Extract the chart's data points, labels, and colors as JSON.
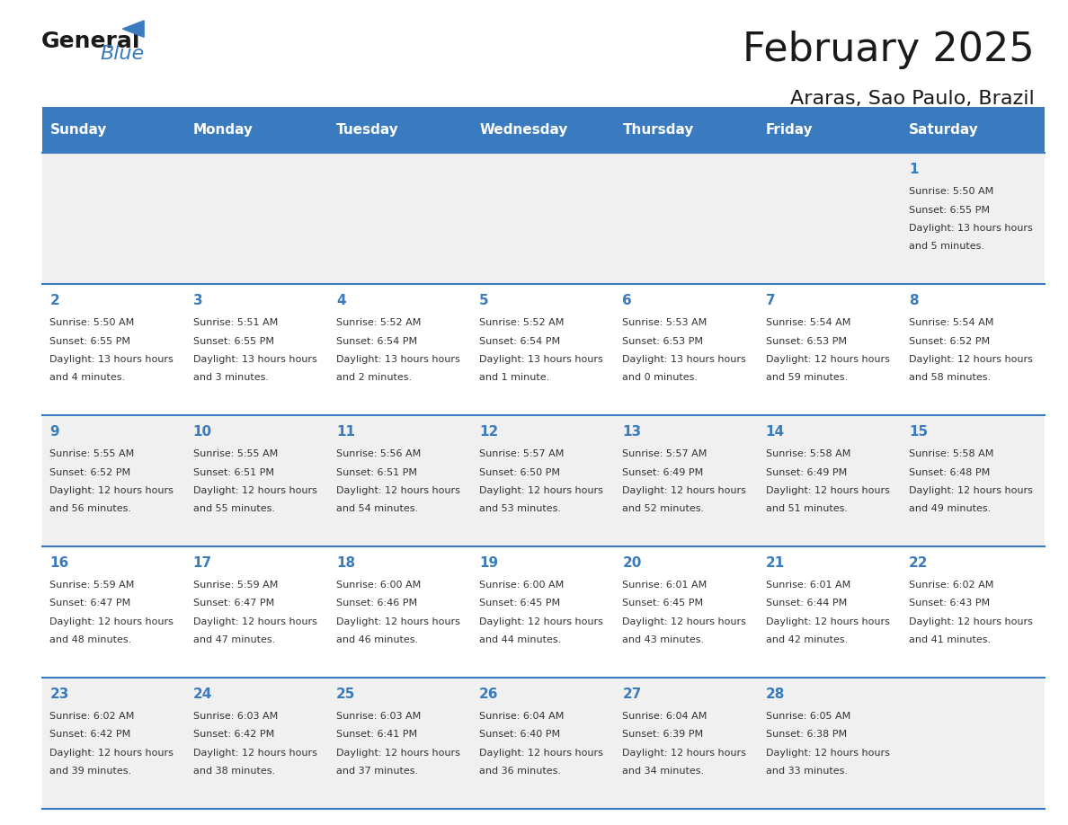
{
  "title": "February 2025",
  "subtitle": "Araras, Sao Paulo, Brazil",
  "header_color": "#3a7bbf",
  "header_text_color": "#ffffff",
  "cell_bg_odd": "#f0f0f0",
  "cell_bg_even": "#ffffff",
  "day_number_color": "#3a7bbf",
  "text_color": "#333333",
  "border_color": "#3a7bbf",
  "days_of_week": [
    "Sunday",
    "Monday",
    "Tuesday",
    "Wednesday",
    "Thursday",
    "Friday",
    "Saturday"
  ],
  "weeks": [
    [
      {
        "day": null,
        "sunrise": null,
        "sunset": null,
        "daylight": null
      },
      {
        "day": null,
        "sunrise": null,
        "sunset": null,
        "daylight": null
      },
      {
        "day": null,
        "sunrise": null,
        "sunset": null,
        "daylight": null
      },
      {
        "day": null,
        "sunrise": null,
        "sunset": null,
        "daylight": null
      },
      {
        "day": null,
        "sunrise": null,
        "sunset": null,
        "daylight": null
      },
      {
        "day": null,
        "sunrise": null,
        "sunset": null,
        "daylight": null
      },
      {
        "day": 1,
        "sunrise": "5:50 AM",
        "sunset": "6:55 PM",
        "daylight": "13 hours and 5 minutes."
      }
    ],
    [
      {
        "day": 2,
        "sunrise": "5:50 AM",
        "sunset": "6:55 PM",
        "daylight": "13 hours and 4 minutes."
      },
      {
        "day": 3,
        "sunrise": "5:51 AM",
        "sunset": "6:55 PM",
        "daylight": "13 hours and 3 minutes."
      },
      {
        "day": 4,
        "sunrise": "5:52 AM",
        "sunset": "6:54 PM",
        "daylight": "13 hours and 2 minutes."
      },
      {
        "day": 5,
        "sunrise": "5:52 AM",
        "sunset": "6:54 PM",
        "daylight": "13 hours and 1 minute."
      },
      {
        "day": 6,
        "sunrise": "5:53 AM",
        "sunset": "6:53 PM",
        "daylight": "13 hours and 0 minutes."
      },
      {
        "day": 7,
        "sunrise": "5:54 AM",
        "sunset": "6:53 PM",
        "daylight": "12 hours and 59 minutes."
      },
      {
        "day": 8,
        "sunrise": "5:54 AM",
        "sunset": "6:52 PM",
        "daylight": "12 hours and 58 minutes."
      }
    ],
    [
      {
        "day": 9,
        "sunrise": "5:55 AM",
        "sunset": "6:52 PM",
        "daylight": "12 hours and 56 minutes."
      },
      {
        "day": 10,
        "sunrise": "5:55 AM",
        "sunset": "6:51 PM",
        "daylight": "12 hours and 55 minutes."
      },
      {
        "day": 11,
        "sunrise": "5:56 AM",
        "sunset": "6:51 PM",
        "daylight": "12 hours and 54 minutes."
      },
      {
        "day": 12,
        "sunrise": "5:57 AM",
        "sunset": "6:50 PM",
        "daylight": "12 hours and 53 minutes."
      },
      {
        "day": 13,
        "sunrise": "5:57 AM",
        "sunset": "6:49 PM",
        "daylight": "12 hours and 52 minutes."
      },
      {
        "day": 14,
        "sunrise": "5:58 AM",
        "sunset": "6:49 PM",
        "daylight": "12 hours and 51 minutes."
      },
      {
        "day": 15,
        "sunrise": "5:58 AM",
        "sunset": "6:48 PM",
        "daylight": "12 hours and 49 minutes."
      }
    ],
    [
      {
        "day": 16,
        "sunrise": "5:59 AM",
        "sunset": "6:47 PM",
        "daylight": "12 hours and 48 minutes."
      },
      {
        "day": 17,
        "sunrise": "5:59 AM",
        "sunset": "6:47 PM",
        "daylight": "12 hours and 47 minutes."
      },
      {
        "day": 18,
        "sunrise": "6:00 AM",
        "sunset": "6:46 PM",
        "daylight": "12 hours and 46 minutes."
      },
      {
        "day": 19,
        "sunrise": "6:00 AM",
        "sunset": "6:45 PM",
        "daylight": "12 hours and 44 minutes."
      },
      {
        "day": 20,
        "sunrise": "6:01 AM",
        "sunset": "6:45 PM",
        "daylight": "12 hours and 43 minutes."
      },
      {
        "day": 21,
        "sunrise": "6:01 AM",
        "sunset": "6:44 PM",
        "daylight": "12 hours and 42 minutes."
      },
      {
        "day": 22,
        "sunrise": "6:02 AM",
        "sunset": "6:43 PM",
        "daylight": "12 hours and 41 minutes."
      }
    ],
    [
      {
        "day": 23,
        "sunrise": "6:02 AM",
        "sunset": "6:42 PM",
        "daylight": "12 hours and 39 minutes."
      },
      {
        "day": 24,
        "sunrise": "6:03 AM",
        "sunset": "6:42 PM",
        "daylight": "12 hours and 38 minutes."
      },
      {
        "day": 25,
        "sunrise": "6:03 AM",
        "sunset": "6:41 PM",
        "daylight": "12 hours and 37 minutes."
      },
      {
        "day": 26,
        "sunrise": "6:04 AM",
        "sunset": "6:40 PM",
        "daylight": "12 hours and 36 minutes."
      },
      {
        "day": 27,
        "sunrise": "6:04 AM",
        "sunset": "6:39 PM",
        "daylight": "12 hours and 34 minutes."
      },
      {
        "day": 28,
        "sunrise": "6:05 AM",
        "sunset": "6:38 PM",
        "daylight": "12 hours and 33 minutes."
      },
      {
        "day": null,
        "sunrise": null,
        "sunset": null,
        "daylight": null
      }
    ]
  ]
}
